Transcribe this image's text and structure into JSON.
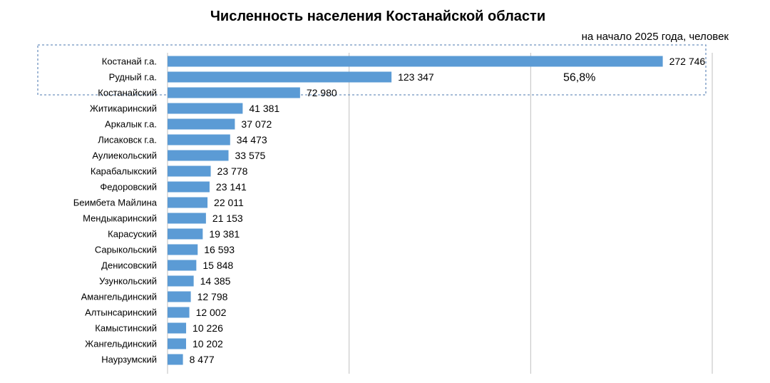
{
  "chart_data": {
    "type": "bar",
    "orientation": "horizontal",
    "title": "Численность населения Костанайской области",
    "subtitle": "на начало 2025 года, человек",
    "categories": [
      "Костанай г.а.",
      "Рудный г.а.",
      "Костанайский",
      "Житикаринский",
      "Аркалык г.а.",
      "Лисаковск г.а.",
      "Аулиекольский",
      "Карабалыкский",
      "Федоровский",
      "Беимбета Майлина",
      "Мендыкаринский",
      "Карасуский",
      "Сарыкольский",
      "Денисовский",
      "Узункольский",
      "Амангельдинский",
      "Алтынсаринский",
      "Камыстинский",
      "Жангельдинский",
      "Наурзумский"
    ],
    "values": [
      272746,
      123347,
      72980,
      41381,
      37072,
      34473,
      33575,
      23778,
      23141,
      22011,
      21153,
      19381,
      16593,
      15848,
      14385,
      12798,
      12002,
      10226,
      10202,
      8477
    ],
    "value_labels": [
      "272 746",
      "123 347",
      "72 980",
      "41 381",
      "37 072",
      "34 473",
      "33 575",
      "23 778",
      "23 141",
      "22 011",
      "21 153",
      "19 381",
      "16 593",
      "15 848",
      "14 385",
      "12 798",
      "12 002",
      "10 226",
      "10 202",
      "8 477"
    ],
    "xlim": [
      0,
      300000
    ],
    "x_gridlines": [
      0,
      100000,
      200000,
      300000
    ],
    "grid": true,
    "color": "#5B9BD5",
    "annotation": {
      "text": "56,8%",
      "covers_categories": [
        "Костанай г.а.",
        "Рудный г.а.",
        "Костанайский"
      ]
    }
  }
}
